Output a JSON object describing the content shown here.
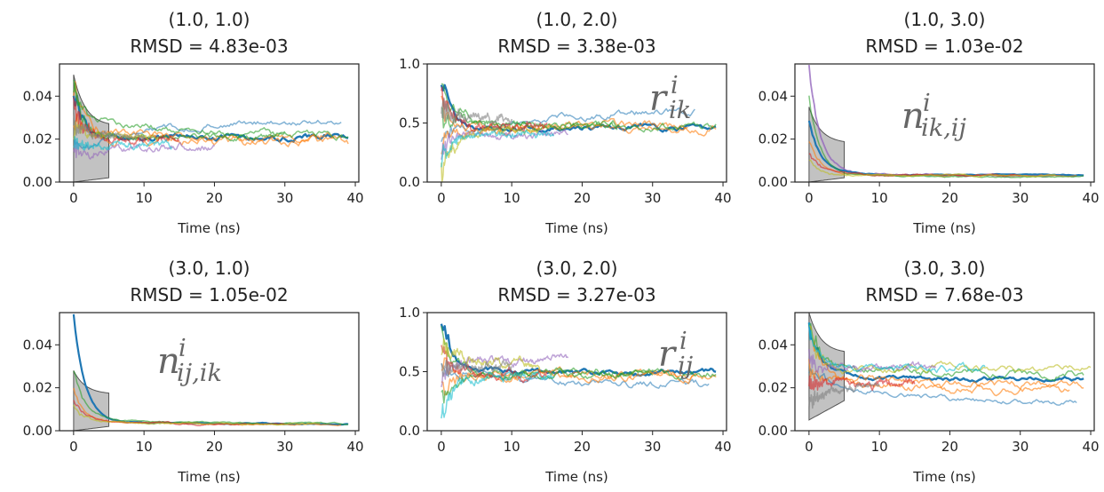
{
  "chart_data": [
    {
      "type": "line",
      "title_line1": "(1.0, 1.0)",
      "title_line2": "RMSD = 4.83e-03",
      "xlabel": "Time (ns)",
      "xlim": [
        -2,
        40.5
      ],
      "ylim": [
        0,
        0.055
      ],
      "xticks": [
        0,
        10,
        20,
        30,
        40
      ],
      "xtick_labels": [
        "0",
        "10",
        "20",
        "30",
        "40"
      ],
      "yticks": [
        0,
        0.02,
        0.04
      ],
      "ytick_labels": [
        "0.00",
        "0.02",
        "0.04"
      ],
      "annotation": null,
      "band": {
        "x": [
          0,
          5
        ],
        "lower": [
          0.0,
          0.002
        ],
        "upper": [
          0.05,
          0.026
        ]
      },
      "series": [
        {
          "color": "#1f77b4",
          "start": 0.04,
          "end": 0.0215,
          "tend": 39,
          "wiggle": 0.0012,
          "mid": 0.02,
          "alpha": 1.0,
          "width": 2.4
        },
        {
          "color": "#1f77b4",
          "start": 0.006,
          "end": 0.029,
          "tend": 38,
          "wiggle": 0.0012,
          "mid": 0.016,
          "alpha": 0.55,
          "width": 1.5
        },
        {
          "color": "#ff7f0e",
          "start": 0.05,
          "end": 0.018,
          "tend": 39,
          "wiggle": 0.0018,
          "mid": 0.022,
          "alpha": 0.6,
          "width": 1.5
        },
        {
          "color": "#ff7f0e",
          "start": 0.03,
          "end": 0.021,
          "tend": 37,
          "wiggle": 0.0015,
          "mid": 0.024,
          "alpha": 0.6,
          "width": 1.5
        },
        {
          "color": "#2ca02c",
          "start": 0.055,
          "end": 0.021,
          "tend": 39,
          "wiggle": 0.0015,
          "mid": 0.032,
          "alpha": 0.6,
          "width": 1.5
        },
        {
          "color": "#2ca02c",
          "start": 0.045,
          "end": 0.021,
          "tend": 30,
          "wiggle": 0.0012,
          "mid": 0.021,
          "alpha": 0.6,
          "width": 1.5
        },
        {
          "color": "#9467bd",
          "start": 0.012,
          "end": 0.017,
          "tend": 20,
          "wiggle": 0.0012,
          "mid": 0.014,
          "alpha": 0.6,
          "width": 1.5
        },
        {
          "color": "#d62728",
          "start": 0.035,
          "end": 0.02,
          "tend": 15,
          "wiggle": 0.0015,
          "mid": 0.02,
          "alpha": 0.6,
          "width": 1.5
        },
        {
          "color": "#bcbd22",
          "start": 0.025,
          "end": 0.02,
          "tend": 12,
          "wiggle": 0.0012,
          "mid": 0.021,
          "alpha": 0.6,
          "width": 1.5
        },
        {
          "color": "#17becf",
          "start": 0.015,
          "end": 0.018,
          "tend": 14,
          "wiggle": 0.0012,
          "mid": 0.017,
          "alpha": 0.6,
          "width": 1.5
        },
        {
          "color": "#7f7f7f",
          "start": 0.03,
          "end": 0.02,
          "tend": 10,
          "wiggle": 0.0012,
          "mid": 0.022,
          "alpha": 0.6,
          "width": 1.5
        }
      ]
    },
    {
      "type": "line",
      "title_line1": "(1.0, 2.0)",
      "title_line2": "RMSD = 3.38e-03",
      "xlabel": "Time (ns)",
      "xlim": [
        -2,
        40.5
      ],
      "ylim": [
        0,
        1.0
      ],
      "xticks": [
        0,
        10,
        20,
        30,
        40
      ],
      "xtick_labels": [
        "0",
        "10",
        "20",
        "30",
        "40"
      ],
      "yticks": [
        0,
        0.5,
        1.0
      ],
      "ytick_labels": [
        "0.0",
        "0.5",
        "1.0"
      ],
      "annotation": {
        "base": "r",
        "sup": "i",
        "sub": "ik"
      },
      "band": null,
      "series": [
        {
          "color": "#1f77b4",
          "start": 0.9,
          "end": 0.46,
          "tend": 39,
          "wiggle": 0.02,
          "mid": 0.45,
          "alpha": 1.0,
          "width": 2.4
        },
        {
          "color": "#1f77b4",
          "start": 0.2,
          "end": 0.6,
          "tend": 36,
          "wiggle": 0.025,
          "mid": 0.42,
          "alpha": 0.55,
          "width": 1.5
        },
        {
          "color": "#ff7f0e",
          "start": 0.7,
          "end": 0.45,
          "tend": 39,
          "wiggle": 0.03,
          "mid": 0.46,
          "alpha": 0.6,
          "width": 1.5
        },
        {
          "color": "#ff7f0e",
          "start": 0.3,
          "end": 0.47,
          "tend": 35,
          "wiggle": 0.03,
          "mid": 0.42,
          "alpha": 0.6,
          "width": 1.5
        },
        {
          "color": "#2ca02c",
          "start": 0.95,
          "end": 0.46,
          "tend": 39,
          "wiggle": 0.03,
          "mid": 0.55,
          "alpha": 0.6,
          "width": 1.5
        },
        {
          "color": "#2ca02c",
          "start": 0.6,
          "end": 0.48,
          "tend": 25,
          "wiggle": 0.025,
          "mid": 0.5,
          "alpha": 0.6,
          "width": 1.5
        },
        {
          "color": "#9467bd",
          "start": 0.25,
          "end": 0.4,
          "tend": 18,
          "wiggle": 0.025,
          "mid": 0.38,
          "alpha": 0.6,
          "width": 1.5
        },
        {
          "color": "#d62728",
          "start": 0.8,
          "end": 0.46,
          "tend": 15,
          "wiggle": 0.03,
          "mid": 0.48,
          "alpha": 0.6,
          "width": 1.5
        },
        {
          "color": "#bcbd22",
          "start": 0.05,
          "end": 0.45,
          "tend": 14,
          "wiggle": 0.025,
          "mid": 0.4,
          "alpha": 0.6,
          "width": 1.5
        },
        {
          "color": "#17becf",
          "start": 0.15,
          "end": 0.42,
          "tend": 16,
          "wiggle": 0.025,
          "mid": 0.38,
          "alpha": 0.6,
          "width": 1.5
        },
        {
          "color": "#7f7f7f",
          "start": 0.6,
          "end": 0.52,
          "tend": 10,
          "wiggle": 0.03,
          "mid": 0.55,
          "alpha": 0.6,
          "width": 1.5
        }
      ]
    },
    {
      "type": "line",
      "title_line1": "(1.0, 3.0)",
      "title_line2": "RMSD = 1.03e-02",
      "xlabel": "Time (ns)",
      "xlim": [
        -2,
        40.5
      ],
      "ylim": [
        0,
        0.055
      ],
      "xticks": [
        0,
        10,
        20,
        30,
        40
      ],
      "xtick_labels": [
        "0",
        "10",
        "20",
        "30",
        "40"
      ],
      "yticks": [
        0,
        0.02,
        0.04
      ],
      "ytick_labels": [
        "0.00",
        "0.02",
        "0.04"
      ],
      "annotation": {
        "base": "n",
        "sup": "i",
        "sub": "ik,ij"
      },
      "band": {
        "x": [
          0,
          5
        ],
        "lower": [
          0.0,
          0.002
        ],
        "upper": [
          0.035,
          0.018
        ]
      },
      "series": [
        {
          "color": "#9467bd",
          "start": 0.055,
          "end": 0.003,
          "tend": 39,
          "wiggle": 0.0003,
          "mid": 0.004,
          "alpha": 0.8,
          "width": 1.8
        },
        {
          "color": "#1f77b4",
          "start": 0.03,
          "end": 0.0032,
          "tend": 39,
          "wiggle": 0.0002,
          "mid": 0.004,
          "alpha": 1.0,
          "width": 2.2
        },
        {
          "color": "#ff7f0e",
          "start": 0.02,
          "end": 0.003,
          "tend": 38,
          "wiggle": 0.0003,
          "mid": 0.004,
          "alpha": 0.6,
          "width": 1.5
        },
        {
          "color": "#2ca02c",
          "start": 0.04,
          "end": 0.0025,
          "tend": 39,
          "wiggle": 0.0003,
          "mid": 0.003,
          "alpha": 0.6,
          "width": 1.5
        },
        {
          "color": "#d62728",
          "start": 0.015,
          "end": 0.003,
          "tend": 30,
          "wiggle": 0.0003,
          "mid": 0.004,
          "alpha": 0.6,
          "width": 1.5
        },
        {
          "color": "#bcbd22",
          "start": 0.01,
          "end": 0.003,
          "tend": 35,
          "wiggle": 0.0003,
          "mid": 0.003,
          "alpha": 0.6,
          "width": 1.5
        }
      ]
    },
    {
      "type": "line",
      "title_line1": "(3.0, 1.0)",
      "title_line2": "RMSD = 1.05e-02",
      "xlabel": "Time (ns)",
      "xlim": [
        -2,
        40.5
      ],
      "ylim": [
        0,
        0.055
      ],
      "xticks": [
        0,
        10,
        20,
        30,
        40
      ],
      "xtick_labels": [
        "0",
        "10",
        "20",
        "30",
        "40"
      ],
      "yticks": [
        0,
        0.02,
        0.04
      ],
      "ytick_labels": [
        "0.00",
        "0.02",
        "0.04"
      ],
      "annotation": {
        "base": "n",
        "sup": "i",
        "sub": "ij,ik"
      },
      "band": {
        "x": [
          0,
          5
        ],
        "lower": [
          0.0,
          0.002
        ],
        "upper": [
          0.028,
          0.017
        ]
      },
      "series": [
        {
          "color": "#1f77b4",
          "start": 0.055,
          "end": 0.0032,
          "tend": 39,
          "wiggle": 0.0002,
          "mid": 0.004,
          "alpha": 1.0,
          "width": 2.2
        },
        {
          "color": "#ff7f0e",
          "start": 0.02,
          "end": 0.003,
          "tend": 38,
          "wiggle": 0.0003,
          "mid": 0.004,
          "alpha": 0.6,
          "width": 1.5
        },
        {
          "color": "#2ca02c",
          "start": 0.03,
          "end": 0.0035,
          "tend": 39,
          "wiggle": 0.0003,
          "mid": 0.005,
          "alpha": 0.6,
          "width": 1.5
        },
        {
          "color": "#d62728",
          "start": 0.015,
          "end": 0.003,
          "tend": 30,
          "wiggle": 0.0003,
          "mid": 0.004,
          "alpha": 0.6,
          "width": 1.5
        },
        {
          "color": "#bcbd22",
          "start": 0.012,
          "end": 0.003,
          "tend": 35,
          "wiggle": 0.0003,
          "mid": 0.004,
          "alpha": 0.6,
          "width": 1.5
        }
      ]
    },
    {
      "type": "line",
      "title_line1": "(3.0, 2.0)",
      "title_line2": "RMSD = 3.27e-03",
      "xlabel": "Time (ns)",
      "xlim": [
        -2,
        40.5
      ],
      "ylim": [
        0,
        1.0
      ],
      "xticks": [
        0,
        10,
        20,
        30,
        40
      ],
      "xtick_labels": [
        "0",
        "10",
        "20",
        "30",
        "40"
      ],
      "yticks": [
        0,
        0.5,
        1.0
      ],
      "ytick_labels": [
        "0.0",
        "0.5",
        "1.0"
      ],
      "annotation": {
        "base": "r",
        "sup": "i",
        "sub": "ij"
      },
      "band": null,
      "series": [
        {
          "color": "#1f77b4",
          "start": 1.0,
          "end": 0.49,
          "tend": 39,
          "wiggle": 0.02,
          "mid": 0.52,
          "alpha": 1.0,
          "width": 2.4
        },
        {
          "color": "#1f77b4",
          "start": 0.7,
          "end": 0.38,
          "tend": 38,
          "wiggle": 0.025,
          "mid": 0.5,
          "alpha": 0.55,
          "width": 1.5
        },
        {
          "color": "#ff7f0e",
          "start": 0.3,
          "end": 0.48,
          "tend": 39,
          "wiggle": 0.03,
          "mid": 0.44,
          "alpha": 0.6,
          "width": 1.5
        },
        {
          "color": "#ff7f0e",
          "start": 0.6,
          "end": 0.47,
          "tend": 36,
          "wiggle": 0.03,
          "mid": 0.48,
          "alpha": 0.6,
          "width": 1.5
        },
        {
          "color": "#2ca02c",
          "start": 0.9,
          "end": 0.48,
          "tend": 39,
          "wiggle": 0.03,
          "mid": 0.5,
          "alpha": 0.6,
          "width": 1.5
        },
        {
          "color": "#2ca02c",
          "start": 0.2,
          "end": 0.5,
          "tend": 30,
          "wiggle": 0.025,
          "mid": 0.45,
          "alpha": 0.6,
          "width": 1.5
        },
        {
          "color": "#9467bd",
          "start": 0.4,
          "end": 0.6,
          "tend": 18,
          "wiggle": 0.025,
          "mid": 0.58,
          "alpha": 0.6,
          "width": 1.5
        },
        {
          "color": "#d62728",
          "start": 0.75,
          "end": 0.45,
          "tend": 15,
          "wiggle": 0.03,
          "mid": 0.5,
          "alpha": 0.6,
          "width": 1.5
        },
        {
          "color": "#bcbd22",
          "start": 0.85,
          "end": 0.52,
          "tend": 14,
          "wiggle": 0.025,
          "mid": 0.62,
          "alpha": 0.6,
          "width": 1.5
        },
        {
          "color": "#17becf",
          "start": 0.1,
          "end": 0.48,
          "tend": 16,
          "wiggle": 0.025,
          "mid": 0.44,
          "alpha": 0.6,
          "width": 1.5
        },
        {
          "color": "#7f7f7f",
          "start": 0.5,
          "end": 0.55,
          "tend": 10,
          "wiggle": 0.03,
          "mid": 0.53,
          "alpha": 0.6,
          "width": 1.5
        }
      ]
    },
    {
      "type": "line",
      "title_line1": "(3.0, 3.0)",
      "title_line2": "RMSD = 7.68e-03",
      "xlabel": "Time (ns)",
      "xlim": [
        -2,
        40.5
      ],
      "ylim": [
        0,
        0.055
      ],
      "xticks": [
        0,
        10,
        20,
        30,
        40
      ],
      "xtick_labels": [
        "0",
        "10",
        "20",
        "30",
        "40"
      ],
      "yticks": [
        0,
        0.02,
        0.04
      ],
      "ytick_labels": [
        "0.00",
        "0.02",
        "0.04"
      ],
      "annotation": null,
      "band": {
        "x": [
          0,
          5
        ],
        "lower": [
          0.005,
          0.014
        ],
        "upper": [
          0.055,
          0.036
        ]
      },
      "series": [
        {
          "color": "#1f77b4",
          "start": 0.05,
          "end": 0.024,
          "tend": 39,
          "wiggle": 0.0008,
          "mid": 0.026,
          "alpha": 1.0,
          "width": 2.4
        },
        {
          "color": "#1f77b4",
          "start": 0.04,
          "end": 0.013,
          "tend": 38,
          "wiggle": 0.001,
          "mid": 0.024,
          "alpha": 0.55,
          "width": 1.5
        },
        {
          "color": "#ff7f0e",
          "start": 0.055,
          "end": 0.021,
          "tend": 39,
          "wiggle": 0.0015,
          "mid": 0.028,
          "alpha": 0.6,
          "width": 1.5
        },
        {
          "color": "#ff7f0e",
          "start": 0.035,
          "end": 0.018,
          "tend": 37,
          "wiggle": 0.0015,
          "mid": 0.025,
          "alpha": 0.6,
          "width": 1.5
        },
        {
          "color": "#2ca02c",
          "start": 0.052,
          "end": 0.027,
          "tend": 39,
          "wiggle": 0.0015,
          "mid": 0.028,
          "alpha": 0.6,
          "width": 1.5
        },
        {
          "color": "#bcbd22",
          "start": 0.045,
          "end": 0.029,
          "tend": 40,
          "wiggle": 0.0015,
          "mid": 0.027,
          "alpha": 0.6,
          "width": 1.5
        },
        {
          "color": "#9467bd",
          "start": 0.03,
          "end": 0.031,
          "tend": 18,
          "wiggle": 0.0012,
          "mid": 0.028,
          "alpha": 0.6,
          "width": 1.5
        },
        {
          "color": "#d62728",
          "start": 0.02,
          "end": 0.024,
          "tend": 15,
          "wiggle": 0.0015,
          "mid": 0.022,
          "alpha": 0.6,
          "width": 1.5
        },
        {
          "color": "#17becf",
          "start": 0.05,
          "end": 0.028,
          "tend": 25,
          "wiggle": 0.0012,
          "mid": 0.03,
          "alpha": 0.6,
          "width": 1.5
        },
        {
          "color": "#7f7f7f",
          "start": 0.01,
          "end": 0.022,
          "tend": 10,
          "wiggle": 0.0012,
          "mid": 0.018,
          "alpha": 0.6,
          "width": 1.5
        }
      ]
    }
  ]
}
